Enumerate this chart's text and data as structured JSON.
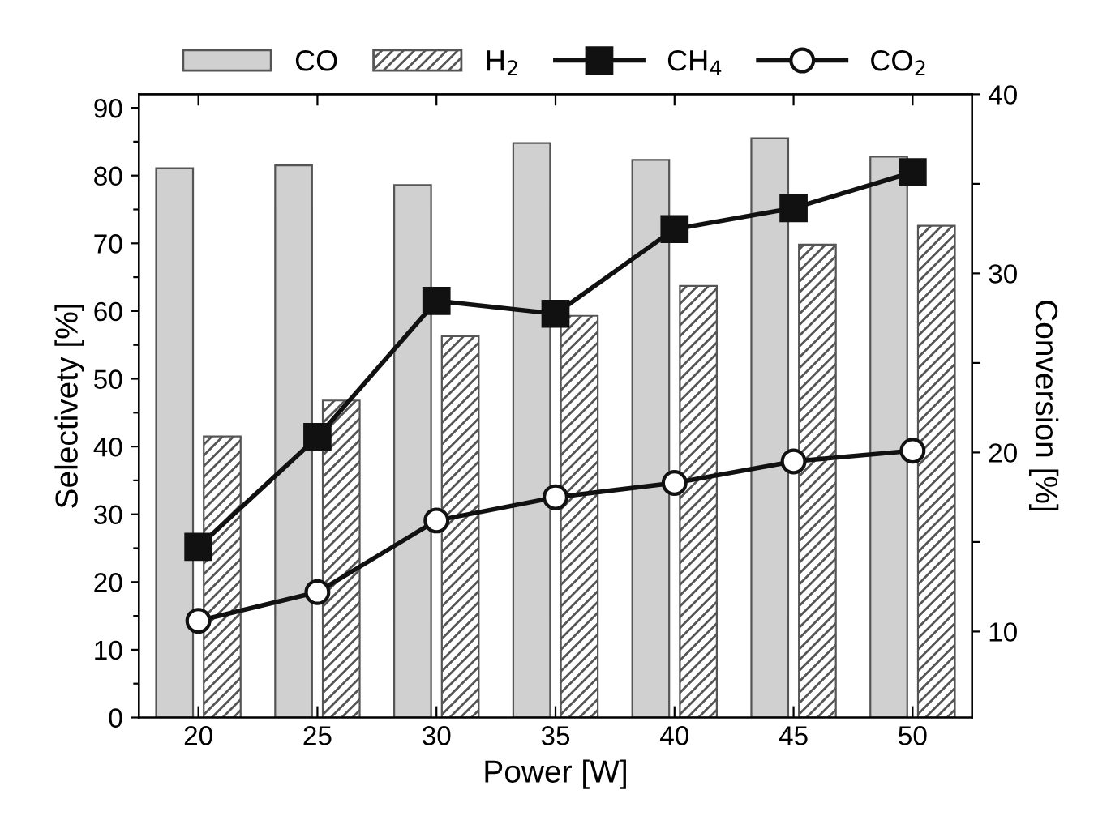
{
  "chart_data": {
    "type": "bar",
    "xlabel": "Power [W]",
    "ylabel": "Selectivety [%]",
    "y2label": "Conversion [%]",
    "categories": [
      "20",
      "25",
      "30",
      "35",
      "40",
      "45",
      "50"
    ],
    "series": [
      {
        "name": "CO",
        "color": "#d0d0d0",
        "values": [
          81.1,
          81.5,
          78.6,
          84.8,
          82.3,
          85.5,
          82.8
        ]
      },
      {
        "name": "H$_{2}$",
        "color": "#555555",
        "values": [
          41.5,
          46.8,
          56.3,
          59.3,
          63.7,
          69.8,
          72.6
        ]
      },
      {
        "name": "CH$_{4}$",
        "type": "line",
        "color": "#111111",
        "marker": "square",
        "values": [
          25.2,
          41.4,
          61.5,
          59.6,
          72.1,
          75.2,
          80.5
        ]
      },
      {
        "name": "CO$_{2}$",
        "type": "line",
        "color": "#111111",
        "marker": "circle",
        "axis": "y2",
        "values": [
          10.6,
          12.2,
          16.2,
          17.5,
          18.3,
          19.5,
          20.1
        ]
      }
    ],
    "ylim": [
      0,
      92
    ],
    "yticks": [
      0,
      {
        "value": 5,
        "label": null
      },
      10,
      {
        "value": 15,
        "label": null
      },
      20,
      {
        "value": 25,
        "label": null
      },
      30,
      {
        "value": 35,
        "label": null
      },
      40,
      {
        "value": 45,
        "label": null
      },
      50,
      {
        "value": 55,
        "label": null
      },
      60,
      {
        "value": 65,
        "label": null
      },
      70,
      {
        "value": 75,
        "label": null
      },
      80,
      {
        "value": 85,
        "label": null
      },
      90
    ],
    "y2lim": [
      5.2,
      40
    ],
    "y2ticks": [
      10,
      {
        "value": 15,
        "label": null
      },
      20,
      {
        "value": 25,
        "label": null
      },
      30,
      {
        "value": 35,
        "label": null
      },
      40
    ],
    "grid": false,
    "legend": "top",
    "line_style": "solid"
  }
}
